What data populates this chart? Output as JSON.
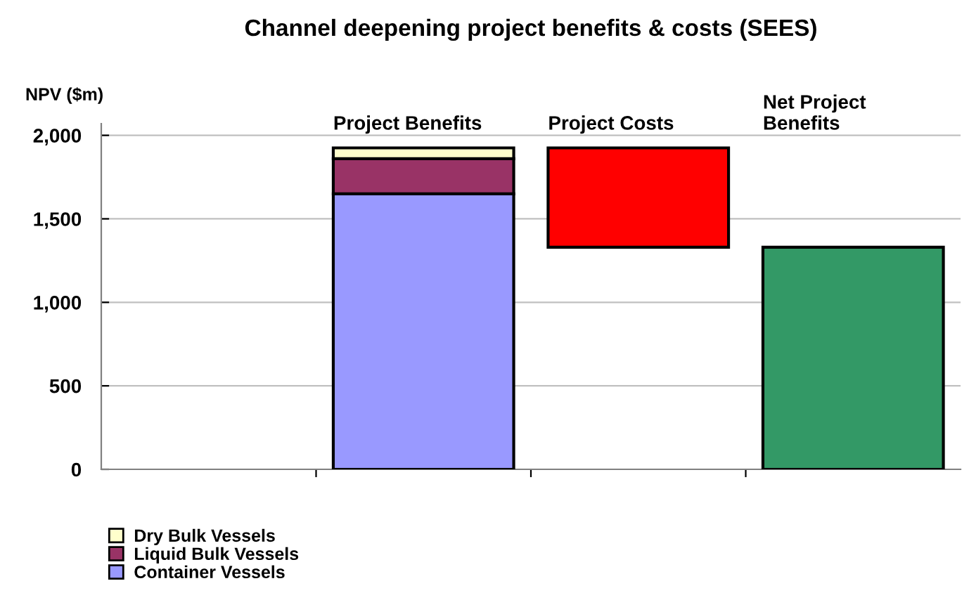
{
  "chart_data": {
    "type": "bar",
    "title": "Channel deepening project benefits & costs (SEES)",
    "ylabel": "NPV ($m)",
    "categories": [
      null,
      "Project Benefits",
      "Project Costs",
      "Net Project\nBenefits"
    ],
    "stacked": true,
    "series": [
      {
        "name": "Container Vessels",
        "color": "#9999ff",
        "values": [
          null,
          1650,
          null,
          null
        ]
      },
      {
        "name": "Liquid Bulk Vessels",
        "color": "#993366",
        "values": [
          null,
          210,
          null,
          null
        ]
      },
      {
        "name": "Dry Bulk Vessels",
        "color": "#ffffcc",
        "values": [
          null,
          65,
          null,
          null
        ]
      },
      {
        "color": "#ff0000",
        "values": [
          null,
          null,
          595,
          null
        ],
        "base": [
          null,
          null,
          1330,
          null
        ]
      },
      {
        "color": "#339966",
        "values": [
          null,
          null,
          null,
          1330
        ]
      }
    ],
    "ylim": [
      0,
      2070
    ],
    "yticks": [
      {
        "value": 0,
        "label": "0"
      },
      {
        "value": 500,
        "label": "500"
      },
      {
        "value": 1000,
        "label": "1,000"
      },
      {
        "value": 1500,
        "label": "1,500"
      },
      {
        "value": 2000,
        "label": "2,000"
      }
    ],
    "grid": "y",
    "legend": "bottom left"
  }
}
